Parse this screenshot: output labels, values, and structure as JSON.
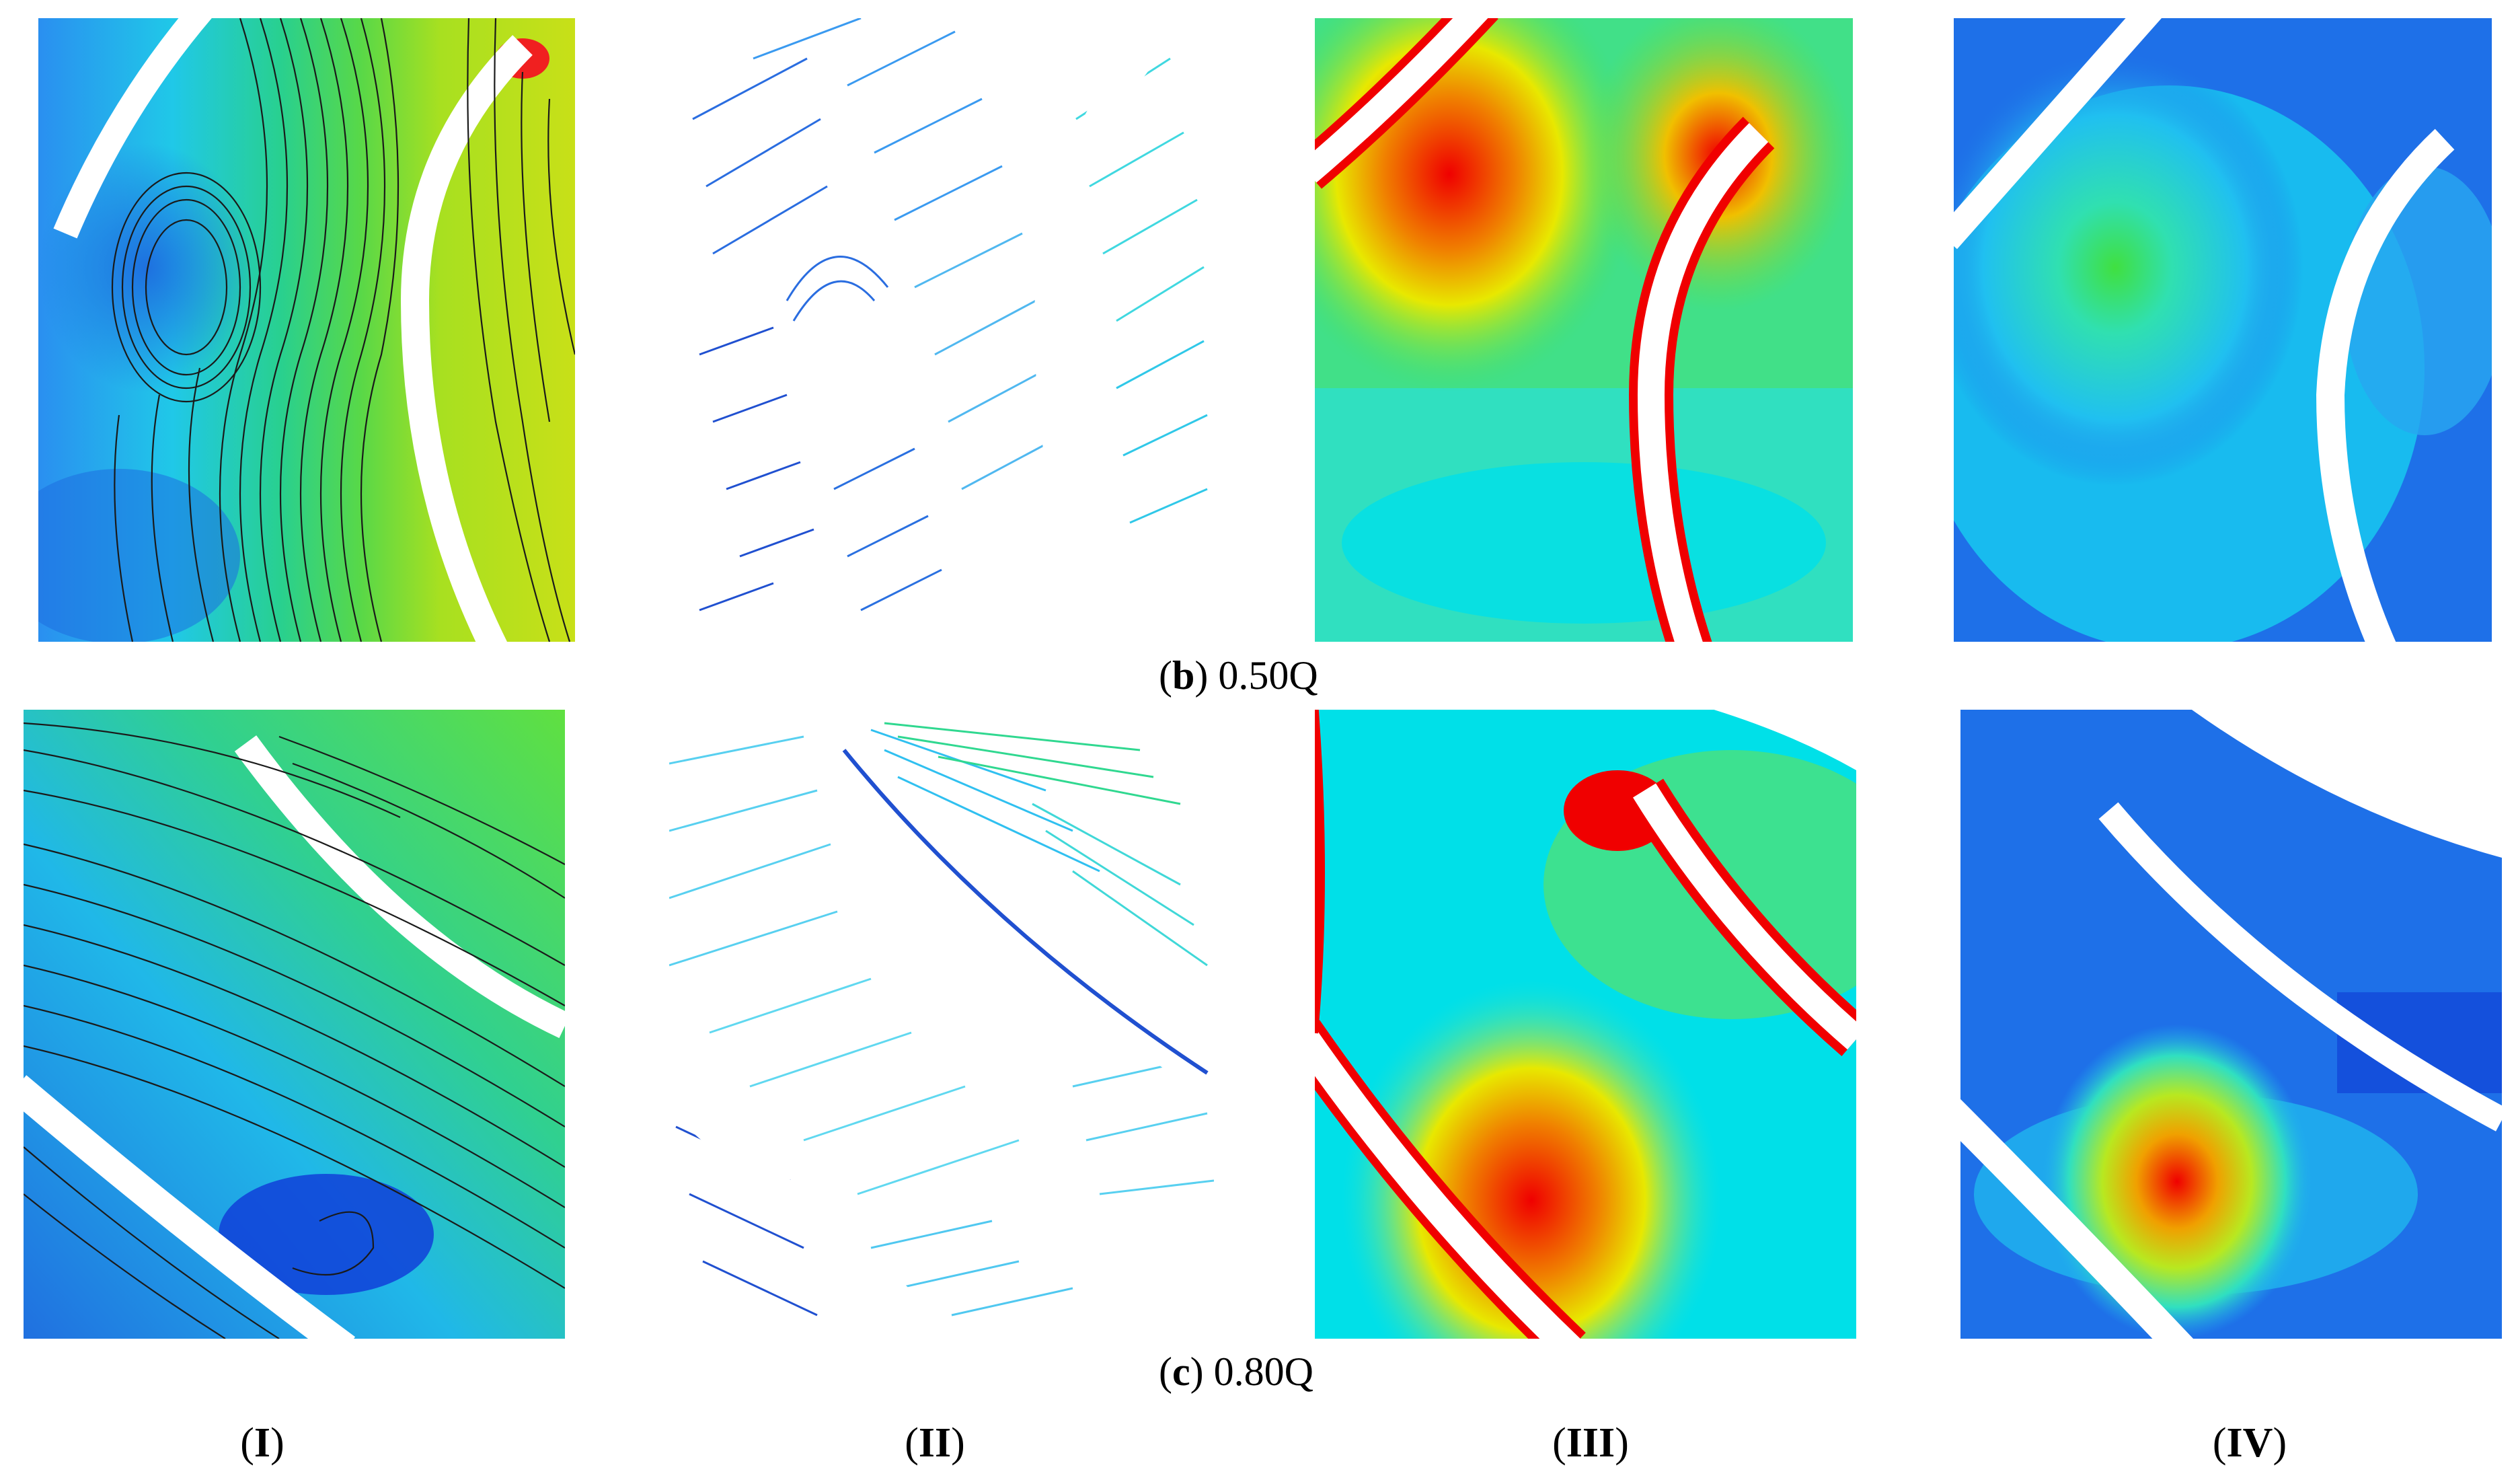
{
  "figure": {
    "rows": [
      {
        "id": "b",
        "caption_letter": "b",
        "caption_text": "0.50Q"
      },
      {
        "id": "c",
        "caption_letter": "c",
        "caption_text": "0.80Q"
      }
    ],
    "columns": [
      {
        "id": "I",
        "label": "I"
      },
      {
        "id": "II",
        "label": "II"
      },
      {
        "id": "III",
        "label": "III"
      },
      {
        "id": "IV",
        "label": "IV"
      }
    ],
    "colors": {
      "dark_blue": "#1a4fd8",
      "blue": "#2f7df0",
      "cyan": "#00e0f0",
      "aqua": "#30f0d8",
      "green": "#20e040",
      "yellow_green": "#c8e010",
      "yellow": "#f0f000",
      "orange": "#f08000",
      "red": "#f00000",
      "streamline": "#1a1a1a",
      "blade": "#ffffff"
    }
  }
}
